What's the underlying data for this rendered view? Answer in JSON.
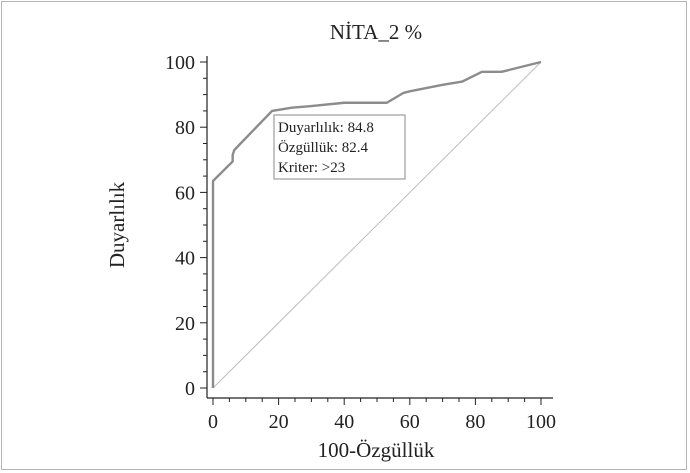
{
  "chart_data": {
    "type": "line",
    "title": "NİTA_2 %",
    "xlabel": "100-Özgüllük",
    "ylabel": "Duyarlılık",
    "xlim": [
      0,
      100
    ],
    "ylim": [
      0,
      100
    ],
    "xticks": [
      "0",
      "20",
      "40",
      "60",
      "80",
      "100"
    ],
    "yticks": [
      "0",
      "20",
      "40",
      "60",
      "80",
      "100"
    ],
    "grid": false,
    "series": [
      {
        "color": "#8c8c8c",
        "x": [
          0,
          0,
          6,
          6,
          6.5,
          18,
          24,
          30,
          40,
          48,
          53,
          58,
          60,
          65,
          70,
          76,
          82,
          88,
          100
        ],
        "y": [
          0,
          63.5,
          69.5,
          71.5,
          73,
          85,
          86,
          86.5,
          87.5,
          87.5,
          87.5,
          90.5,
          91,
          92,
          93,
          94,
          97,
          97,
          100
        ]
      },
      {
        "color": "#bdbdbd",
        "x": [
          0,
          100
        ],
        "y": [
          0,
          100
        ]
      }
    ],
    "annotation": {
      "lines": [
        "Duyarlılık: 84.8",
        "Özgüllük: 82.4",
        "Kriter: >23"
      ]
    }
  }
}
